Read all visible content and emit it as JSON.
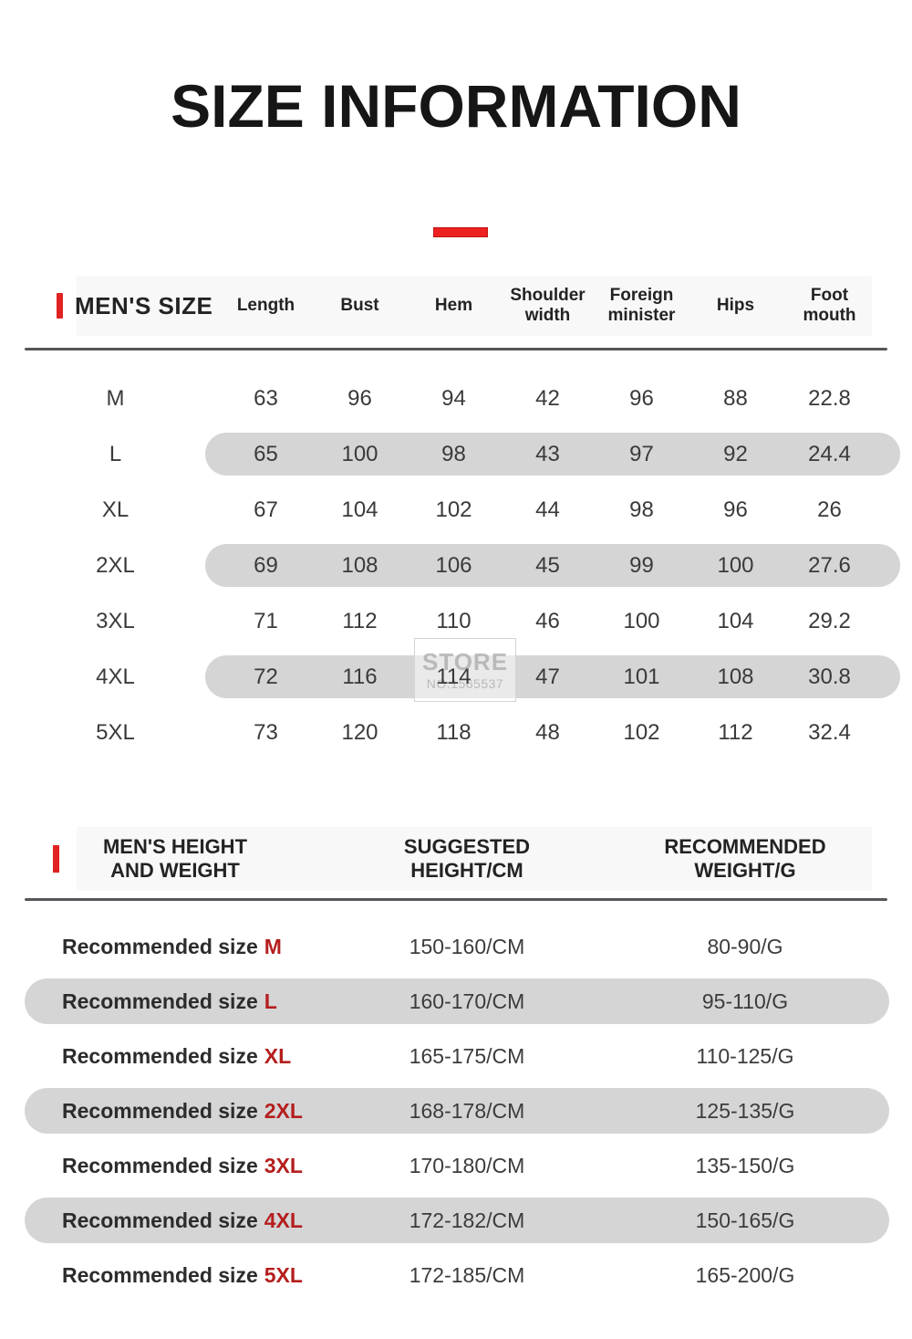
{
  "page": {
    "title": "SIZE INFORMATION"
  },
  "colors": {
    "accent_red": "#e02222",
    "size_red": "#b51e1e",
    "pill_gray": "#d5d5d5"
  },
  "watermark": {
    "line1": "STORE",
    "line2": "NO.1565537"
  },
  "size_table": {
    "section_title": "MEN'S SIZE",
    "columns": [
      "Length",
      "Bust",
      "Hem",
      "Shoulder width",
      "Foreign minister",
      "Hips",
      "Foot mouth"
    ],
    "rows": [
      {
        "size": "M",
        "highlight": false,
        "values": [
          "63",
          "96",
          "94",
          "42",
          "96",
          "88",
          "22.8"
        ]
      },
      {
        "size": "L",
        "highlight": true,
        "values": [
          "65",
          "100",
          "98",
          "43",
          "97",
          "92",
          "24.4"
        ]
      },
      {
        "size": "XL",
        "highlight": false,
        "values": [
          "67",
          "104",
          "102",
          "44",
          "98",
          "96",
          "26"
        ]
      },
      {
        "size": "2XL",
        "highlight": true,
        "values": [
          "69",
          "108",
          "106",
          "45",
          "99",
          "100",
          "27.6"
        ]
      },
      {
        "size": "3XL",
        "highlight": false,
        "values": [
          "71",
          "112",
          "110",
          "46",
          "100",
          "104",
          "29.2"
        ]
      },
      {
        "size": "4XL",
        "highlight": true,
        "values": [
          "72",
          "116",
          "114",
          "47",
          "101",
          "108",
          "30.8"
        ]
      },
      {
        "size": "5XL",
        "highlight": false,
        "values": [
          "73",
          "120",
          "118",
          "48",
          "102",
          "112",
          "32.4"
        ]
      }
    ]
  },
  "fit_table": {
    "headers": [
      "MEN'S HEIGHT AND WEIGHT",
      "SUGGESTED HEIGHT/CM",
      "RECOMMENDED WEIGHT/G"
    ],
    "label_prefix": "Recommended size",
    "rows": [
      {
        "size": "M",
        "highlight": false,
        "height": "150-160/CM",
        "weight": "80-90/G"
      },
      {
        "size": "L",
        "highlight": true,
        "height": "160-170/CM",
        "weight": "95-110/G"
      },
      {
        "size": "XL",
        "highlight": false,
        "height": "165-175/CM",
        "weight": "110-125/G"
      },
      {
        "size": "2XL",
        "highlight": true,
        "height": "168-178/CM",
        "weight": "125-135/G"
      },
      {
        "size": "3XL",
        "highlight": false,
        "height": "170-180/CM",
        "weight": "135-150/G"
      },
      {
        "size": "4XL",
        "highlight": true,
        "height": "172-182/CM",
        "weight": "150-165/G"
      },
      {
        "size": "5XL",
        "highlight": false,
        "height": "172-185/CM",
        "weight": "165-200/G"
      }
    ]
  }
}
